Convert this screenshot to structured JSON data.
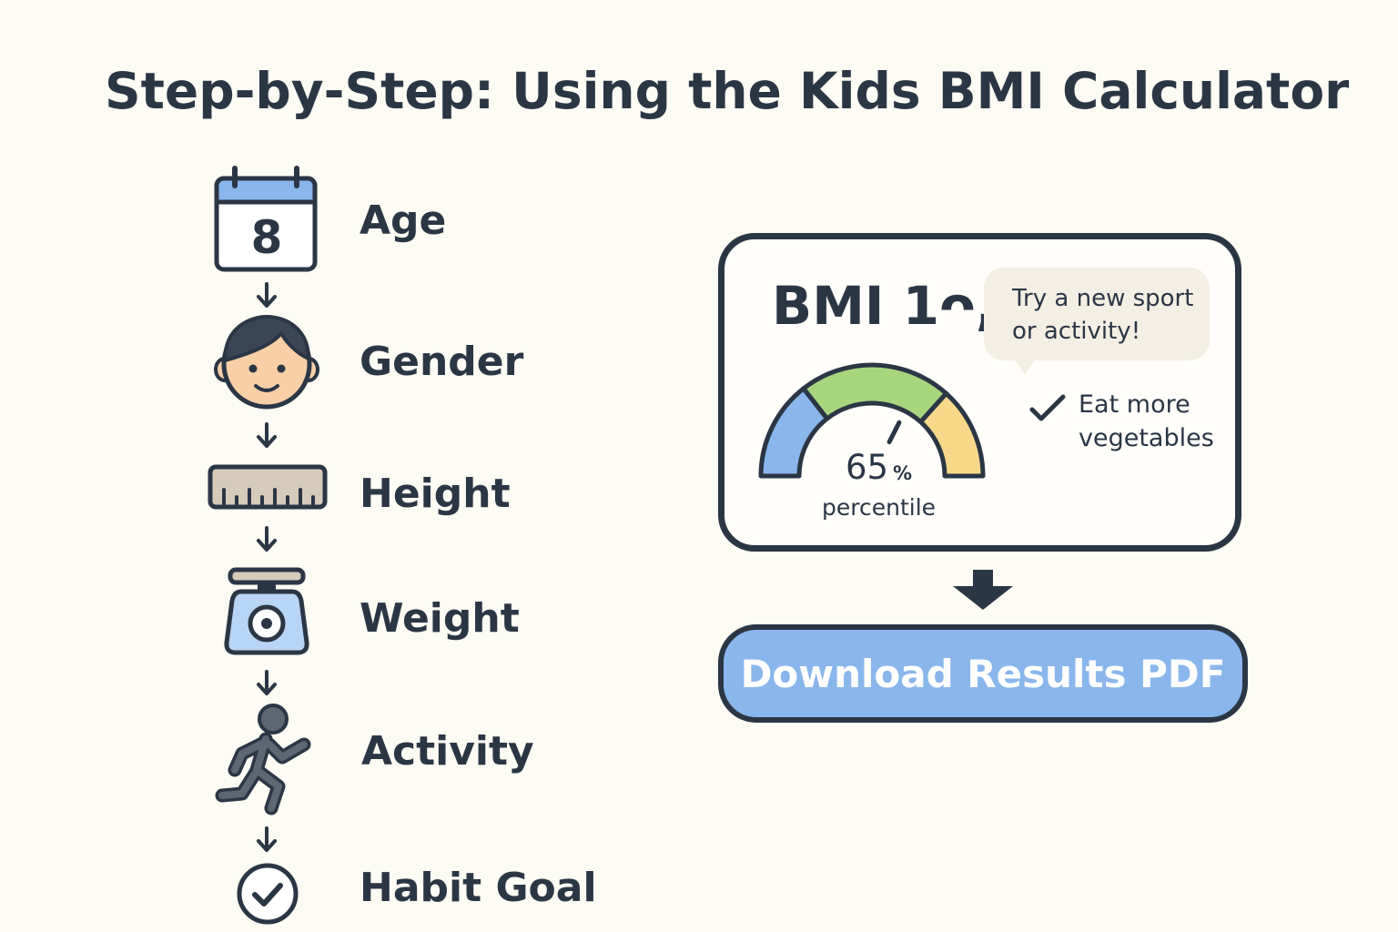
{
  "title": "Step-by-Step: Using the Kids BMI Calculator",
  "steps": [
    {
      "label": "Age",
      "icon": "calendar-icon",
      "calendar_day": "8"
    },
    {
      "label": "Gender",
      "icon": "child-face-icon"
    },
    {
      "label": "Height",
      "icon": "ruler-icon"
    },
    {
      "label": "Weight",
      "icon": "scale-icon"
    },
    {
      "label": "Activity",
      "icon": "running-person-icon"
    },
    {
      "label": "Habit Goal",
      "icon": "check-circle-icon"
    }
  ],
  "result": {
    "bmi_text": "BMI 1ᴖ,5",
    "gauge": {
      "percentile_value": "65",
      "percent_symbol": "%",
      "percentile_label": "percentile",
      "fraction": 0.65,
      "colors": {
        "low": "#8ab6ec",
        "healthy": "#a7d67f",
        "high": "#f8d98a"
      }
    },
    "bubble": {
      "line1": "Try a new sport",
      "line2": "or activity!"
    },
    "tip": {
      "line1": "Eat more",
      "line2": "vegetables"
    }
  },
  "download_button": {
    "label": "Download Results PDF"
  },
  "colors": {
    "ink": "#2b3645",
    "accent_blue": "#8ab6ec",
    "background": "#fcfbf4",
    "bubble": "#f4efe4"
  }
}
